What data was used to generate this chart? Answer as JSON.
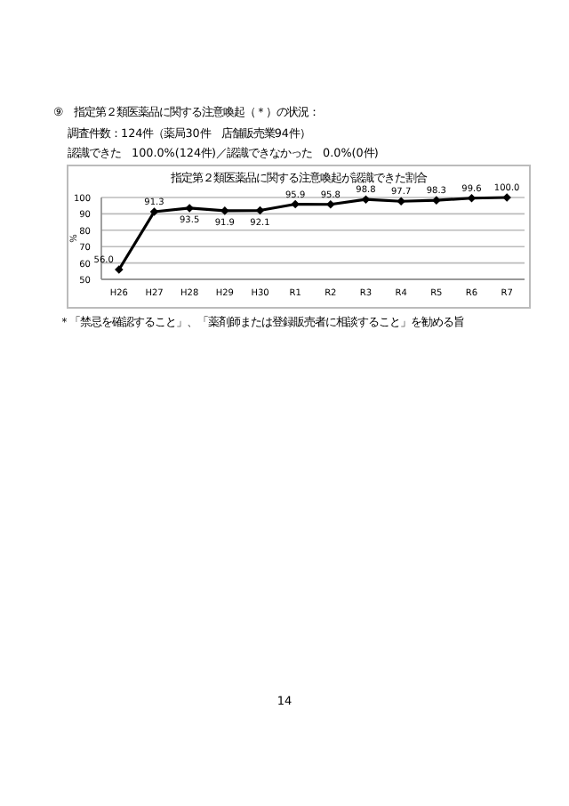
{
  "chart_data": {
    "type": "line",
    "title": "指定第２類医薬品に関する注意喚起が認識できた割合",
    "ylabel": "%",
    "annotations": [
      "⑨　指定第２類医薬品に関する注意喚起（＊）の状況：",
      "調査件数：124件（薬局30件　店舗販売業94件）",
      "認識できた　100.0%(124件)／認識できなかった　0.0%(0件)",
      "＊「禁忌を確認すること」、「薬剤師または登録販売者に相談すること」を勧める旨",
      "14"
    ],
    "categories": [
      "H26",
      "H27",
      "H28",
      "H29",
      "H30",
      "R1",
      "R2",
      "R3",
      "R4",
      "R5",
      "R6",
      "R7"
    ],
    "series": [
      {
        "color": "#000000",
        "values": [
          56.0,
          91.3,
          93.5,
          91.9,
          92.1,
          95.9,
          95.8,
          98.8,
          97.7,
          98.3,
          99.6,
          100.0
        ]
      }
    ],
    "value_labels": [
      "56.0",
      "91.3",
      "93.5",
      "91.9",
      "92.1",
      "95.9",
      "95.8",
      "98.8",
      "97.7",
      "98.3",
      "99.6",
      "100.0"
    ],
    "ylim": [
      50,
      100
    ],
    "yticks": [
      50,
      60,
      70,
      80,
      90,
      100
    ],
    "grid": "y",
    "marker": "diamond",
    "line_style": "solid"
  }
}
